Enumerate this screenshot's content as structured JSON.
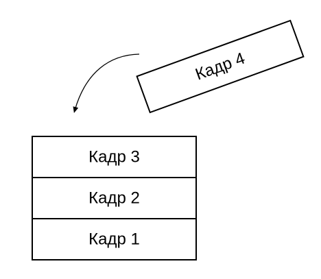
{
  "stack": {
    "frames": [
      {
        "label": "Кадр 3"
      },
      {
        "label": "Кадр 2"
      },
      {
        "label": "Кадр 1"
      }
    ]
  },
  "incoming_frame": {
    "label": "Кадр 4"
  },
  "colors": {
    "stroke": "#000000",
    "fill": "#ffffff",
    "text": "#000000"
  }
}
